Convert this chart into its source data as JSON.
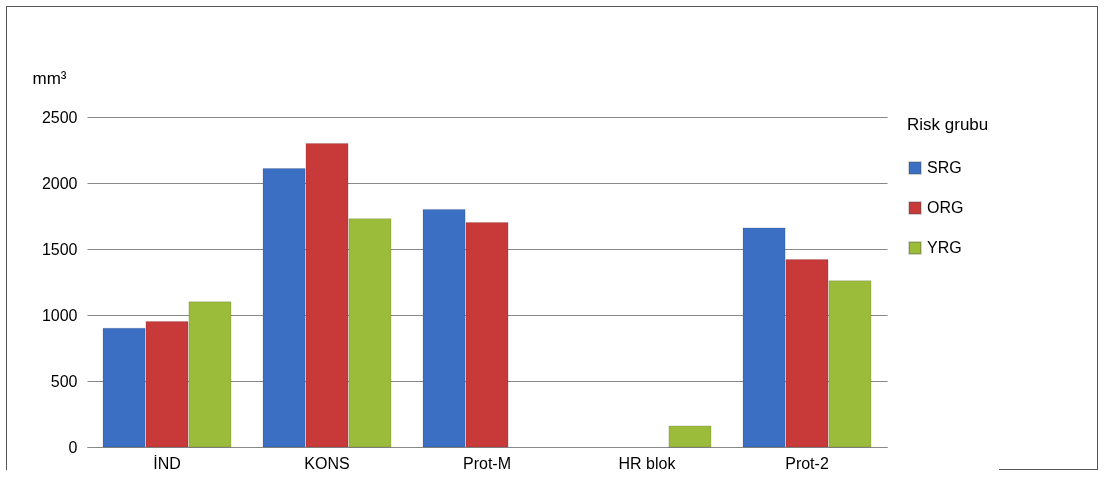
{
  "chart_data": {
    "type": "bar",
    "ylabel": "mm³",
    "legend_title": "Risk grubu",
    "categories": [
      "İND",
      "KONS",
      "Prot-M",
      "HR blok",
      "Prot-2"
    ],
    "series": [
      {
        "name": "SRG",
        "color": "#3a6fc4",
        "values": [
          900,
          2110,
          1800,
          null,
          1660
        ]
      },
      {
        "name": "ORG",
        "color": "#c83a3a",
        "values": [
          950,
          2300,
          1700,
          null,
          1420
        ]
      },
      {
        "name": "YRG",
        "color": "#9bbb3a",
        "values": [
          1100,
          1730,
          null,
          160,
          1260
        ]
      }
    ],
    "ylim": [
      0,
      2500
    ],
    "yticks": [
      0,
      500,
      1000,
      1500,
      2000,
      2500
    ],
    "grid": "y",
    "legend": "right"
  }
}
